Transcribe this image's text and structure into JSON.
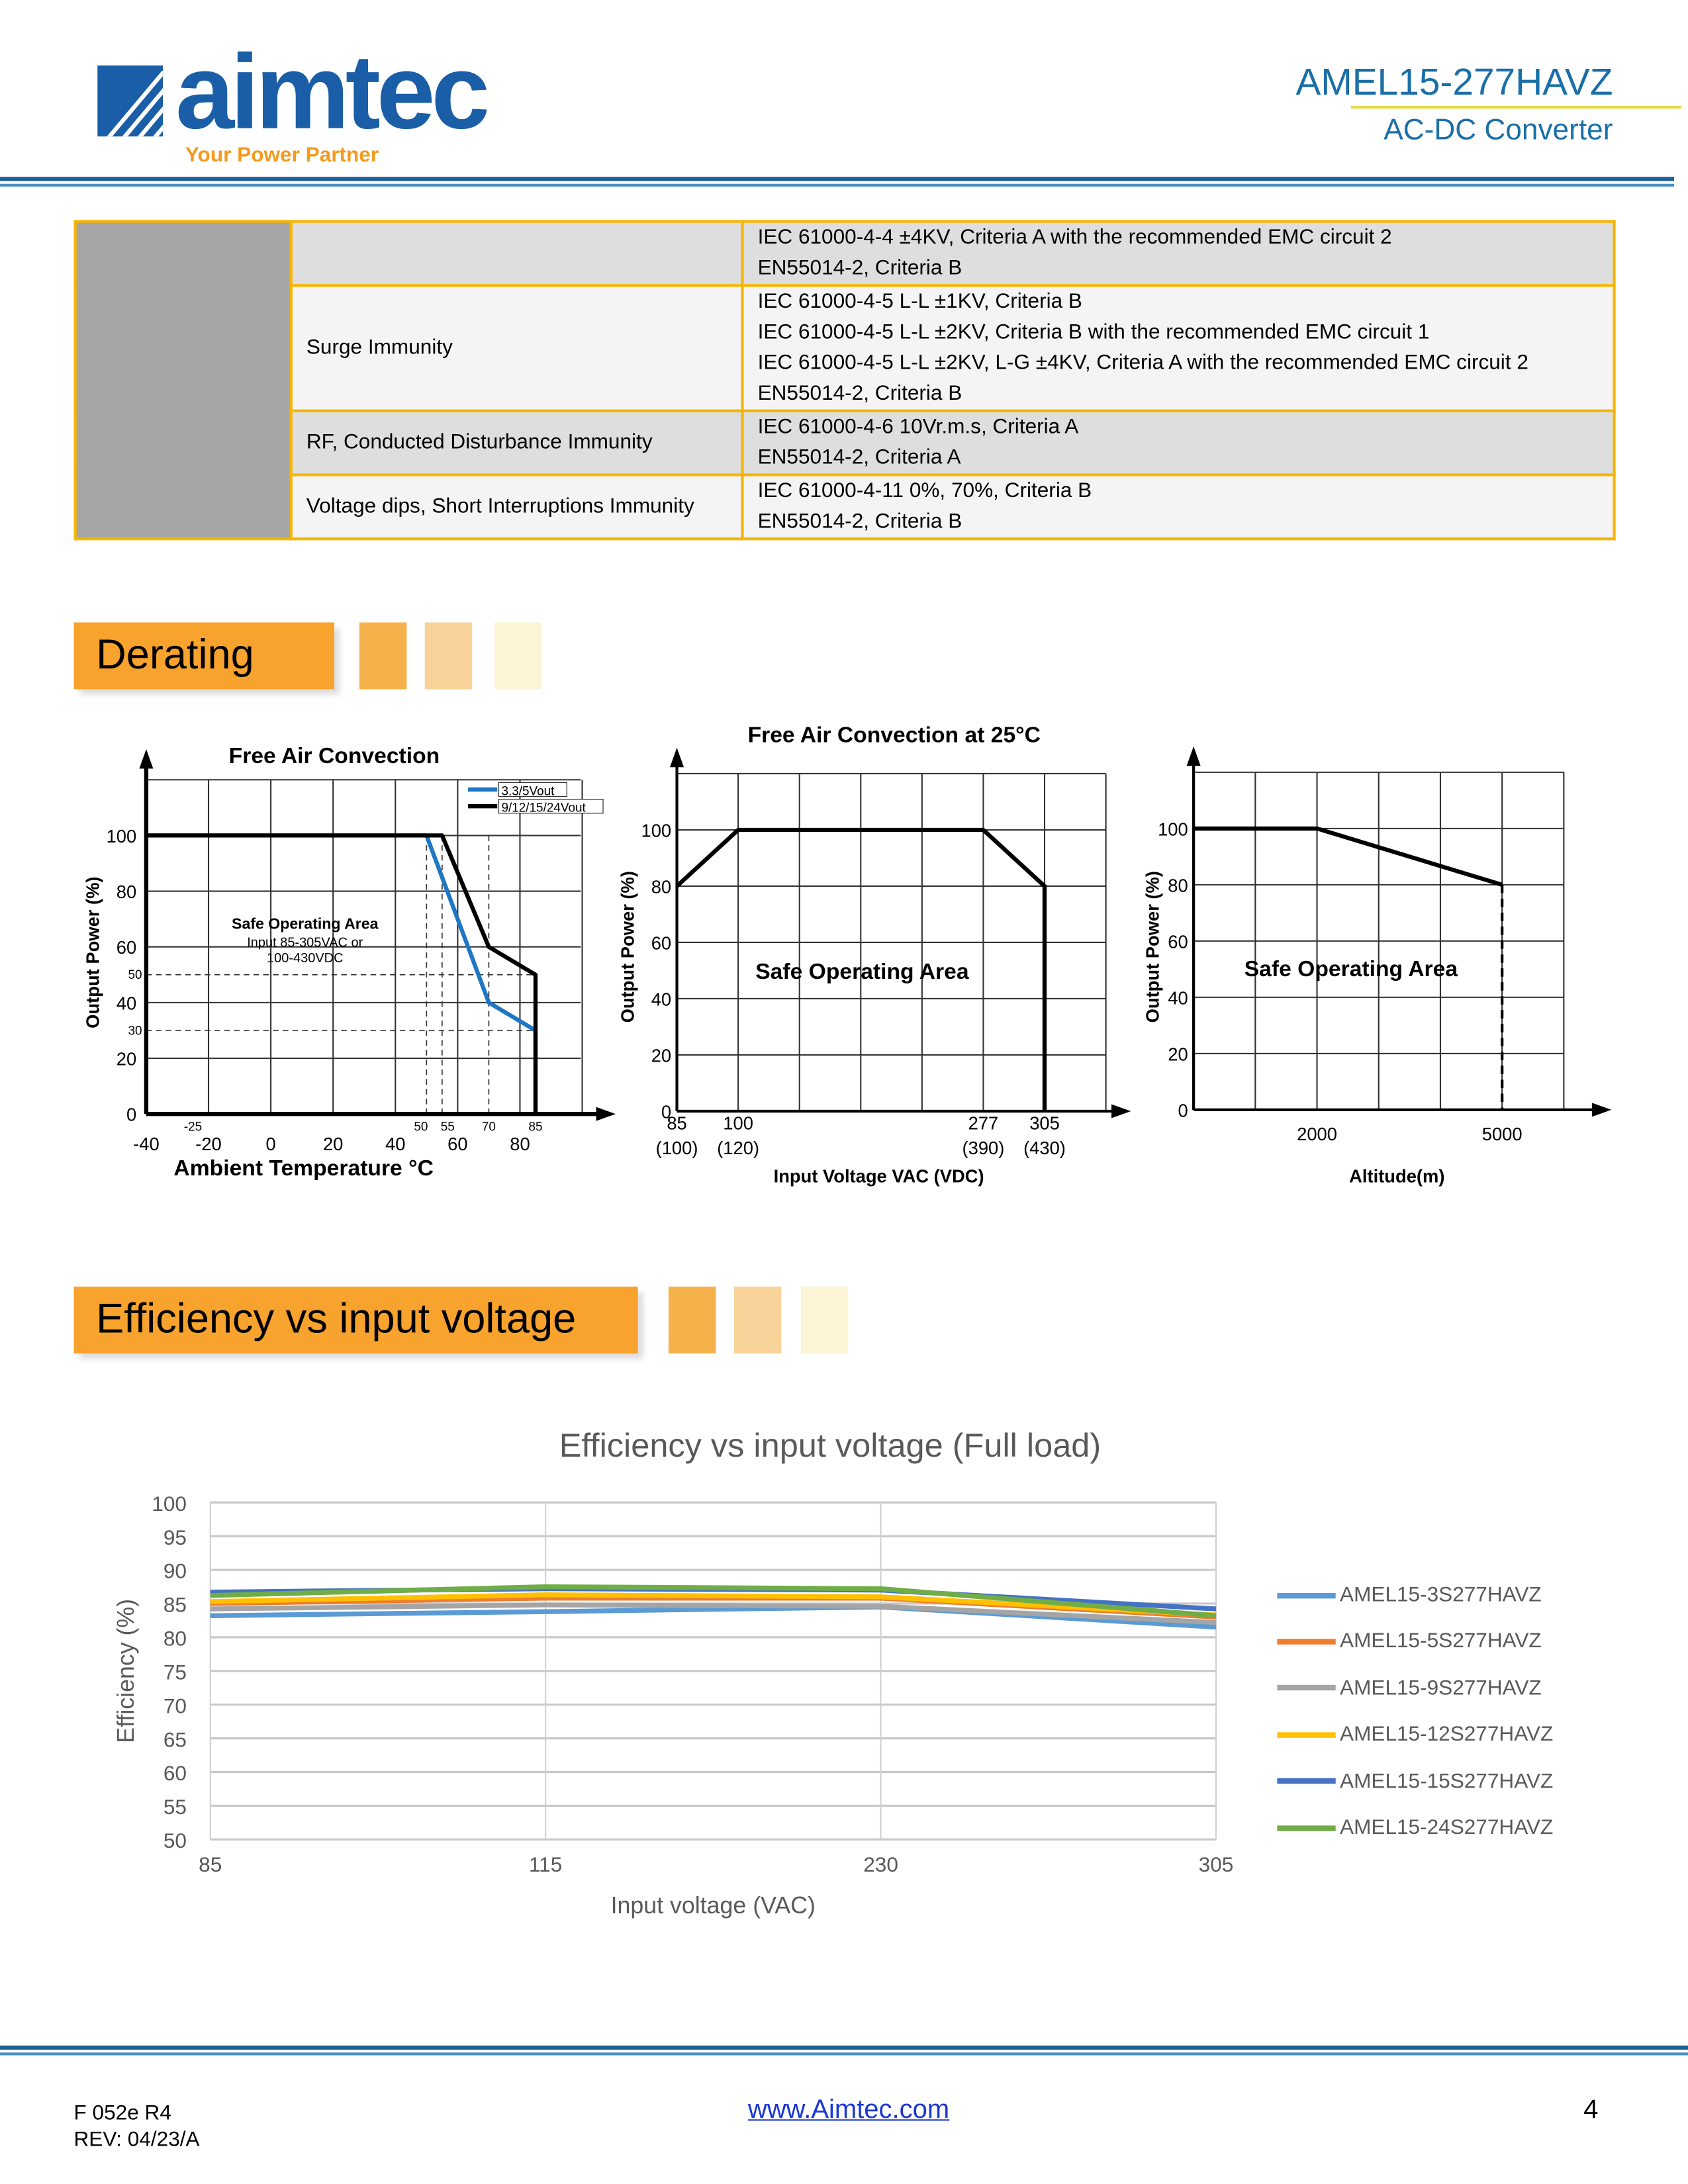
{
  "header": {
    "logo_text": "aimtec",
    "logo_tagline": "Your Power Partner",
    "model": "AMEL15-277HAVZ",
    "subtitle": "AC-DC Converter"
  },
  "emc_table": {
    "rows": [
      {
        "label": "",
        "lines": [
          "IEC 61000-4-4 ±4KV, Criteria A with the recommended EMC circuit 2",
          "EN55014-2, Criteria B"
        ]
      },
      {
        "label": "Surge Immunity",
        "lines": [
          "IEC 61000-4-5 L-L ±1KV, Criteria B",
          "IEC 61000-4-5 L-L ±2KV, Criteria B with the recommended EMC circuit 1",
          "IEC 61000-4-5 L-L ±2KV, L-G ±4KV, Criteria A with the recommended EMC circuit 2",
          "EN55014-2, Criteria B"
        ]
      },
      {
        "label": "RF, Conducted Disturbance Immunity",
        "lines": [
          "IEC 61000-4-6 10Vr.m.s, Criteria A",
          "EN55014-2, Criteria A"
        ]
      },
      {
        "label": "Voltage dips, Short Interruptions Immunity",
        "lines": [
          "IEC 61000-4-11 0%, 70%, Criteria B",
          "EN55014-2, Criteria B"
        ]
      }
    ]
  },
  "sections": {
    "derating": "Derating",
    "efficiency": "Efficiency vs input voltage"
  },
  "chart_data": [
    {
      "type": "line",
      "title": "Free Air Convection",
      "xlabel": "Ambient Temperature  °C",
      "ylabel": "Output Power (%)",
      "annotation": [
        "Safe Operating Area",
        "Input 85-305VAC or",
        "100-430VDC"
      ],
      "xlim": [
        -40,
        100
      ],
      "ylim": [
        0,
        120
      ],
      "x_ticks": [
        -40,
        -20,
        0,
        20,
        40,
        60,
        80
      ],
      "x_minor_labels": [
        -25,
        50,
        55,
        70,
        85
      ],
      "y_ticks": [
        0,
        20,
        40,
        60,
        80,
        100
      ],
      "y_minor_labels": [
        30,
        50
      ],
      "legend": "top-right",
      "series": [
        {
          "name": "3.3/5Vout",
          "color": "#1f77c4",
          "x": [
            -40,
            50,
            70,
            85,
            85
          ],
          "y": [
            100,
            100,
            40,
            30,
            0
          ]
        },
        {
          "name": "9/12/15/24Vout",
          "color": "#000000",
          "x": [
            -40,
            55,
            70,
            85,
            85
          ],
          "y": [
            100,
            100,
            60,
            50,
            0
          ]
        }
      ]
    },
    {
      "type": "line",
      "title": "Free Air Convection at 25°C",
      "xlabel": "Input Voltage VAC (VDC)",
      "ylabel": "Output Power (%)",
      "annotation": [
        "Safe Operating Area"
      ],
      "ylim": [
        0,
        120
      ],
      "x_ticks": [
        85,
        100,
        277,
        305
      ],
      "x_tick_labels_dc": [
        "(100)",
        "(120)",
        "(390)",
        "(430)"
      ],
      "y_ticks": [
        0,
        20,
        40,
        60,
        80,
        100
      ],
      "series": [
        {
          "name": "Output Power",
          "color": "#000000",
          "x": [
            85,
            100,
            277,
            305,
            305
          ],
          "y": [
            80,
            100,
            100,
            80,
            0
          ]
        }
      ]
    },
    {
      "type": "line",
      "title": "",
      "xlabel": "Altitude(m)",
      "ylabel": "Output Power (%)",
      "annotation": [
        "Safe Operating Area"
      ],
      "xlim": [
        0,
        6000
      ],
      "ylim": [
        0,
        120
      ],
      "x_ticks": [
        2000,
        5000
      ],
      "y_ticks": [
        0,
        20,
        40,
        60,
        80,
        100
      ],
      "series": [
        {
          "name": "Output Power",
          "color": "#000000",
          "x": [
            0,
            2000,
            5000
          ],
          "y": [
            100,
            100,
            80
          ]
        }
      ]
    },
    {
      "type": "line",
      "title": "Efficiency vs input voltage (Full load)",
      "xlabel": "Input voltage (VAC)",
      "ylabel": "Efficiency (%)",
      "categories": [
        85,
        115,
        230,
        305
      ],
      "ylim": [
        50,
        100
      ],
      "y_ticks": [
        50,
        55,
        60,
        65,
        70,
        75,
        80,
        85,
        90,
        95,
        100
      ],
      "grid": true,
      "legend": "right",
      "series": [
        {
          "name": "AMEL15-3S277HAVZ",
          "color": "#5b9bd5",
          "values": [
            83.2,
            83.8,
            84.5,
            81.5
          ]
        },
        {
          "name": "AMEL15-5S277HAVZ",
          "color": "#ed7d31",
          "values": [
            85.0,
            85.8,
            85.8,
            83.0
          ]
        },
        {
          "name": "AMEL15-9S277HAVZ",
          "color": "#a5a5a5",
          "values": [
            84.2,
            84.8,
            84.6,
            82.2
          ]
        },
        {
          "name": "AMEL15-12S277HAVZ",
          "color": "#ffc000",
          "values": [
            85.3,
            86.3,
            86.0,
            83.3
          ]
        },
        {
          "name": "AMEL15-15S277HAVZ",
          "color": "#4472c4",
          "values": [
            86.7,
            87.2,
            87.0,
            84.2
          ]
        },
        {
          "name": "AMEL15-24S277HAVZ",
          "color": "#70ad47",
          "values": [
            86.2,
            87.5,
            87.2,
            83.2
          ]
        }
      ]
    }
  ],
  "footer": {
    "form": "F 052e R4",
    "rev": "REV: 04/23/A",
    "link": "www.Aimtec.com",
    "page": "4"
  }
}
